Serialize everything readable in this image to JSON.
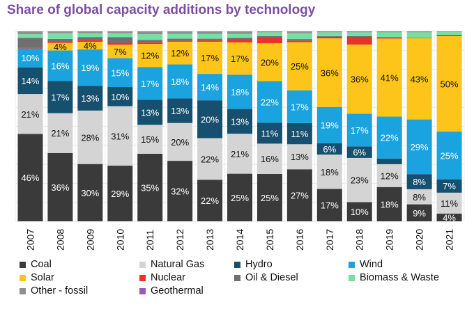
{
  "title": "Share of global capacity additions by technology",
  "chart_data": {
    "type": "bar",
    "stacked": true,
    "percent": true,
    "title": "Share of global capacity additions by technology",
    "categories": [
      "2007",
      "2008",
      "2009",
      "2010",
      "2011",
      "2012",
      "2013",
      "2014",
      "2015",
      "2016",
      "2017",
      "2018",
      "2019",
      "2020",
      "2021"
    ],
    "ylim": [
      0,
      100
    ],
    "grid": true,
    "legend_position": "bottom",
    "series": [
      {
        "name": "Coal",
        "color": "#3a3a3a",
        "label_color": "#ffffff",
        "values": [
          46,
          36,
          30,
          29,
          35,
          32,
          22,
          25,
          25,
          27,
          17,
          10,
          18,
          9,
          4
        ],
        "labels": [
          "46%",
          "36%",
          "30%",
          "29%",
          "35%",
          "32%",
          "22%",
          "25%",
          "25%",
          "27%",
          "17%",
          "10%",
          "18%",
          "9%",
          "4%"
        ]
      },
      {
        "name": "Natural Gas",
        "color": "#d4d4d4",
        "label_color": "#111111",
        "values": [
          21,
          21,
          28,
          31,
          15,
          20,
          22,
          21,
          16,
          13,
          18,
          23,
          12,
          8,
          11
        ],
        "labels": [
          "21%",
          "21%",
          "28%",
          "31%",
          "15%",
          "20%",
          "22%",
          "21%",
          "16%",
          "13%",
          "18%",
          "23%",
          "12%",
          "8%",
          "11%"
        ]
      },
      {
        "name": "Hydro",
        "color": "#17506e",
        "label_color": "#ffffff",
        "values": [
          14,
          17,
          13,
          10,
          13,
          13,
          20,
          13,
          11,
          11,
          6,
          6,
          3,
          8,
          7
        ],
        "labels": [
          "14%",
          "17%",
          "13%",
          "10%",
          "13%",
          "13%",
          "20%",
          "13%",
          "11%",
          "11%",
          "6%",
          "6%",
          "",
          "8%",
          "7%"
        ]
      },
      {
        "name": "Wind",
        "color": "#1aa3df",
        "label_color": "#ffffff",
        "values": [
          10,
          16,
          19,
          15,
          17,
          18,
          14,
          18,
          22,
          17,
          19,
          17,
          22,
          29,
          25
        ],
        "labels": [
          "10%",
          "16%",
          "19%",
          "15%",
          "17%",
          "18%",
          "14%",
          "18%",
          "22%",
          "17%",
          "19%",
          "17%",
          "22%",
          "29%",
          "25%"
        ]
      },
      {
        "name": "Solar",
        "color": "#fdc519",
        "label_color": "#111111",
        "values": [
          0,
          4,
          4,
          7,
          12,
          12,
          17,
          17,
          20,
          25,
          36,
          36,
          41,
          43,
          50
        ],
        "labels": [
          "",
          "4%",
          "4%",
          "7%",
          "12%",
          "12%",
          "17%",
          "17%",
          "20%",
          "25%",
          "36%",
          "36%",
          "41%",
          "43%",
          "50%"
        ]
      },
      {
        "name": "Nuclear",
        "color": "#e8322b",
        "label_color": "#ffffff",
        "values": [
          0.5,
          0.6,
          1,
          1,
          0.8,
          0.6,
          0.8,
          1.6,
          3,
          0.8,
          0.8,
          4,
          0.5,
          0,
          0.5
        ],
        "labels": [
          "",
          "",
          "",
          "",
          "",
          "",
          "",
          "",
          "",
          "",
          "",
          "",
          "",
          "",
          ""
        ]
      },
      {
        "name": "Oil & Diesel",
        "color": "#6f6f6f",
        "label_color": "#ffffff",
        "values": [
          5,
          1.5,
          1.5,
          3,
          1.2,
          1,
          0.8,
          0.8,
          0.8,
          0.8,
          0.4,
          0.4,
          0.3,
          0.2,
          0.2
        ],
        "labels": [
          "",
          "",
          "",
          "",
          "",
          "",
          "",
          "",
          "",
          "",
          "",
          "",
          "",
          "",
          ""
        ]
      },
      {
        "name": "Biomass & Waste",
        "color": "#73e0a4",
        "label_color": "#111111",
        "values": [
          2,
          3,
          2,
          2,
          3,
          2.5,
          2.5,
          2,
          2,
          3,
          2,
          2,
          2.5,
          3,
          1.5
        ],
        "labels": [
          "",
          "",
          "",
          "",
          "",
          "",
          "",
          "",
          "",
          "",
          "",
          "",
          "",
          "",
          ""
        ]
      },
      {
        "name": "Other - fossil",
        "color": "#8f8f8f",
        "label_color": "#ffffff",
        "values": [
          1.5,
          1,
          1,
          1,
          1.5,
          1.4,
          1.4,
          1.4,
          0.5,
          1,
          0.5,
          0.5,
          0.5,
          0.5,
          0.3
        ],
        "labels": [
          "",
          "",
          "",
          "",
          "",
          "",
          "",
          "",
          "",
          "",
          "",
          "",
          "",
          "",
          ""
        ]
      },
      {
        "name": "Geothermal",
        "color": "#9b59b6",
        "label_color": "#ffffff",
        "values": [
          0,
          0,
          0,
          0,
          0,
          0,
          0,
          0,
          0,
          0,
          0,
          0,
          0,
          0,
          0
        ],
        "labels": [
          "",
          "",
          "",
          "",
          "",
          "",
          "",
          "",
          "",
          "",
          "",
          "",
          "",
          "",
          ""
        ]
      }
    ]
  }
}
